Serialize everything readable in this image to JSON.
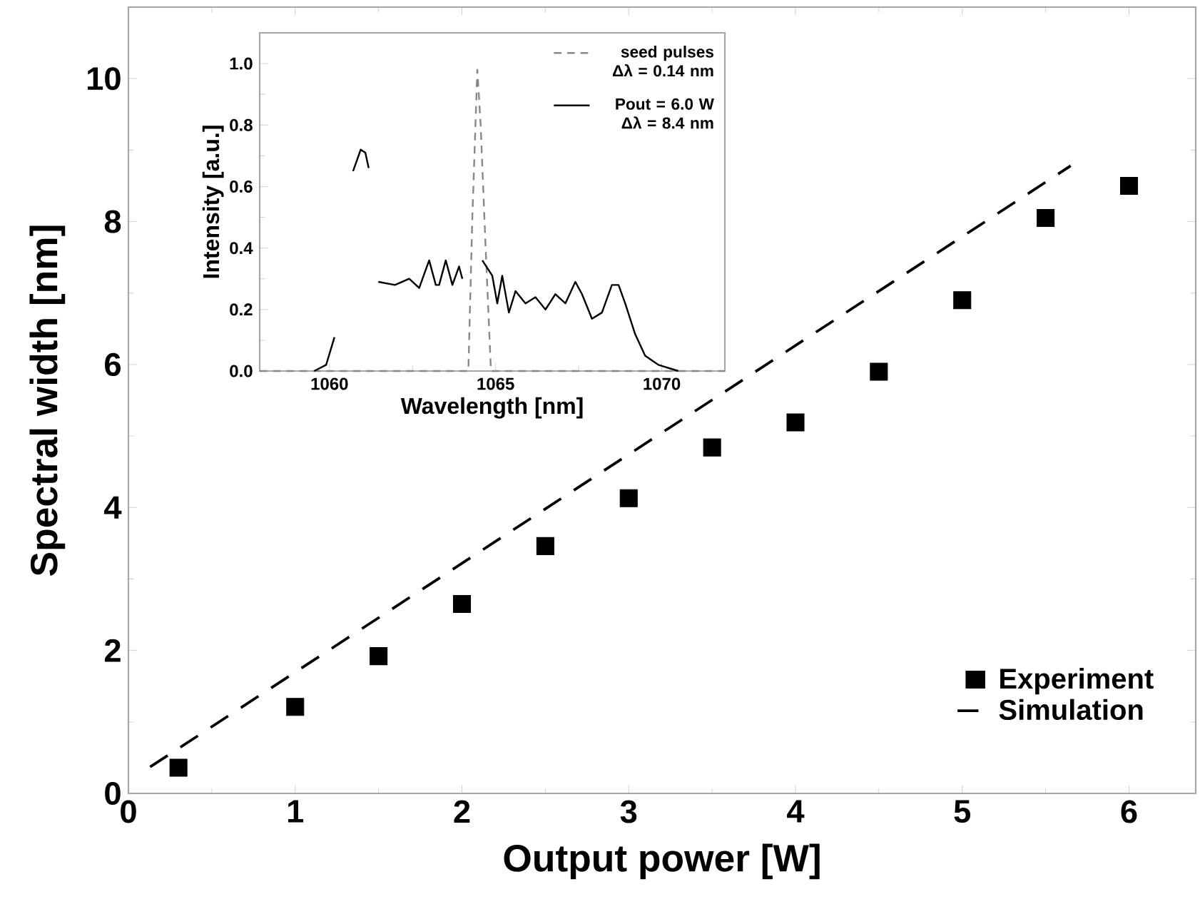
{
  "chart_data": [
    {
      "type": "scatter",
      "xlabel": "Output power [W]",
      "ylabel": "Spectral width [nm]",
      "xlim": [
        0,
        6.4
      ],
      "ylim": [
        0,
        11
      ],
      "xticks": [
        0,
        1,
        2,
        3,
        4,
        5,
        6
      ],
      "yticks": [
        0,
        2,
        4,
        6,
        8,
        10
      ],
      "legend": "bottom right",
      "series": [
        {
          "name": "Experiment",
          "marker": "square",
          "color": "#000000",
          "x": [
            0.3,
            1,
            1.5,
            2,
            2.5,
            3,
            3.5,
            4,
            4.5,
            5,
            5.5,
            6
          ],
          "values": [
            0.36,
            1.21,
            1.92,
            2.65,
            3.46,
            4.13,
            4.84,
            5.19,
            5.9,
            6.9,
            8.05,
            8.5
          ]
        },
        {
          "name": "Simulation",
          "type": "line",
          "line_style": "dashed",
          "color": "#000000",
          "x": [
            0.13,
            5.65
          ],
          "values": [
            0.37,
            8.78
          ]
        }
      ]
    },
    {
      "type": "line",
      "xlabel": "Wavelength [nm]",
      "ylabel": "Intensity [a.u.]",
      "xlim": [
        1057.9,
        1071.9
      ],
      "ylim": [
        0,
        1.1
      ],
      "xticks": [
        1060,
        1065,
        1070
      ],
      "yticks": [
        {
          "value": 0,
          "label": "0.0"
        },
        {
          "value": 0.2,
          "label": "0.2"
        },
        {
          "value": 0.4,
          "label": "0.4"
        },
        {
          "value": 0.6,
          "label": "0.6"
        },
        {
          "value": 0.8,
          "label": "0.8"
        },
        {
          "value": 1,
          "label": "1.0"
        }
      ],
      "legend": "top right",
      "series": [
        {
          "name": "seed pulses Δλ = 0.14 nm",
          "line_style": "dashed",
          "color": "#888888",
          "x": [
            1057.9,
            1064.18,
            1064.3,
            1064.45,
            1064.55,
            1064.7,
            1064.86,
            1071.9
          ],
          "values": [
            0,
            0,
            0.5,
            0.98,
            0.8,
            0.4,
            0,
            0
          ]
        },
        {
          "name": "Pout = 6.0 W Δλ = 8.4 nm",
          "line_style": "solid",
          "color": "#000000",
          "x": [
            1059.54,
            1059.9,
            1060.15,
            1060.4,
            1060.71,
            1060.94,
            1061.08,
            1061.18,
            1061.3,
            1061.47,
            1061.97,
            1062.4,
            1062.7,
            1063.0,
            1063.2,
            1063.3,
            1063.5,
            1063.7,
            1063.9,
            1064.0,
            1064.3,
            1064.6,
            1064.9,
            1065.05,
            1065.2,
            1065.4,
            1065.6,
            1065.9,
            1066.2,
            1066.5,
            1066.8,
            1067.1,
            1067.4,
            1067.6,
            1067.9,
            1068.2,
            1068.5,
            1068.7,
            1068.9,
            1069.2,
            1069.5,
            1069.9,
            1070.5
          ],
          "values": [
            0,
            0.02,
            0.11,
            null,
            0.65,
            0.72,
            0.71,
            0.66,
            null,
            0.29,
            0.28,
            0.3,
            0.27,
            0.36,
            0.28,
            0.28,
            0.36,
            0.28,
            0.34,
            0.3,
            null,
            0.36,
            0.31,
            0.22,
            0.31,
            0.19,
            0.26,
            0.22,
            0.24,
            0.2,
            0.25,
            0.22,
            0.29,
            0.25,
            0.17,
            0.19,
            0.28,
            0.28,
            0.22,
            0.12,
            0.05,
            0.02,
            0
          ]
        }
      ]
    }
  ]
}
